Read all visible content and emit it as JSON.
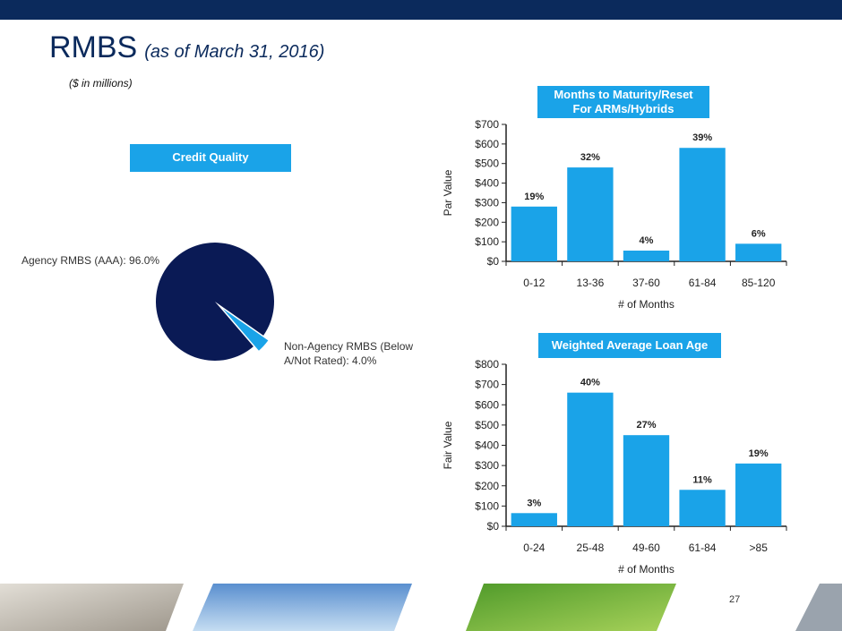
{
  "header": {
    "title": "RMBS",
    "subtitle": "(as of March 31, 2016)",
    "units": "($ in millions)"
  },
  "page_number": "27",
  "colors": {
    "navy": "#0b2a5c",
    "accent": "#1aa3e8",
    "pie_navy": "#0a1a55"
  },
  "credit_quality": {
    "box_label": "Credit Quality",
    "labels": [
      "Agency RMBS (AAA): 96.0%",
      "Non-Agency RMBS (Below",
      "A/Not Rated): 4.0%"
    ]
  },
  "maturity": {
    "box_label_line1": "Months to Maturity/Reset",
    "box_label_line2": "For ARMs/Hybrids"
  },
  "loan_age": {
    "box_label": "Weighted Average Loan Age"
  },
  "chart_data": [
    {
      "type": "pie",
      "categories": [
        "Agency RMBS (AAA)",
        "Non-Agency RMBS (Below A/Not Rated)"
      ],
      "values": [
        96.0,
        4.0
      ],
      "title": "Credit Quality"
    },
    {
      "type": "bar",
      "title": "Months to Maturity/Reset For ARMs/Hybrids",
      "categories": [
        "0-12",
        "13-36",
        "37-60",
        "61-84",
        "85-120"
      ],
      "values": [
        280,
        480,
        55,
        580,
        90
      ],
      "data_labels": [
        "19%",
        "32%",
        "4%",
        "39%",
        "6%"
      ],
      "xlabel": "# of Months",
      "ylabel": "Par Value",
      "ylim": [
        0,
        700
      ],
      "yticks": [
        "$0",
        "$100",
        "$200",
        "$300",
        "$400",
        "$500",
        "$600",
        "$700"
      ]
    },
    {
      "type": "bar",
      "title": "Weighted Average Loan Age",
      "categories": [
        "0-24",
        "25-48",
        "49-60",
        "61-84",
        ">85"
      ],
      "values": [
        65,
        660,
        450,
        180,
        310
      ],
      "data_labels": [
        "3%",
        "40%",
        "27%",
        "11%",
        "19%"
      ],
      "xlabel": "# of Months",
      "ylabel": "Fair Value",
      "ylim": [
        0,
        800
      ],
      "yticks": [
        "$0",
        "$100",
        "$200",
        "$300",
        "$400",
        "$500",
        "$600",
        "$700",
        "$800"
      ]
    }
  ]
}
